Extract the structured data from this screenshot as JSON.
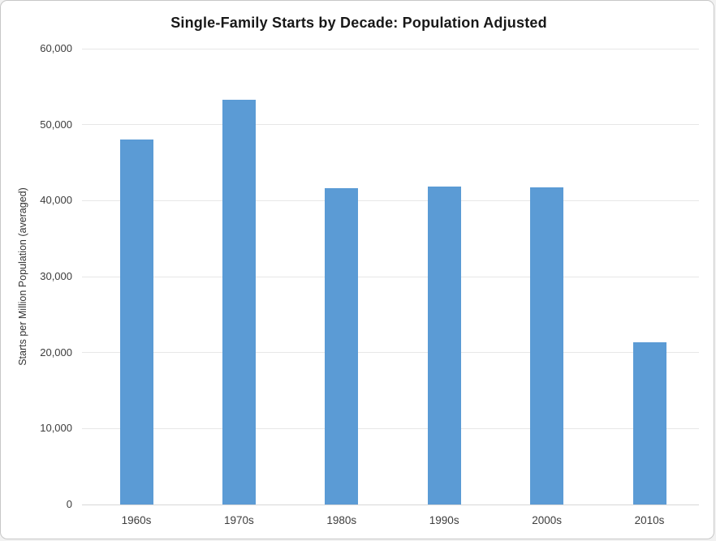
{
  "frame": {
    "background_color": "#ffffff",
    "border_color": "#c7c7c7"
  },
  "chart_data": {
    "type": "bar",
    "title": "Single-Family Starts by Decade: Population Adjusted",
    "xlabel": "",
    "ylabel": "Starts per Million Population (averaged)",
    "categories": [
      "1960s",
      "1970s",
      "1980s",
      "1990s",
      "2000s",
      "2010s"
    ],
    "values": [
      48000,
      53300,
      41600,
      41800,
      41750,
      21350
    ],
    "ylim": [
      0,
      60000
    ],
    "ytick_interval": 10000,
    "ytick_labels": [
      "0",
      "10,000",
      "20,000",
      "30,000",
      "40,000",
      "50,000",
      "60,000"
    ],
    "grid": true,
    "legend_position": "none",
    "bar_color": "#5b9bd5",
    "gridline_color": "#e7e7e7",
    "axis_line_color": "#d8d8d8",
    "tick_text_color": "#3d3d3d",
    "title_color": "#181818"
  }
}
